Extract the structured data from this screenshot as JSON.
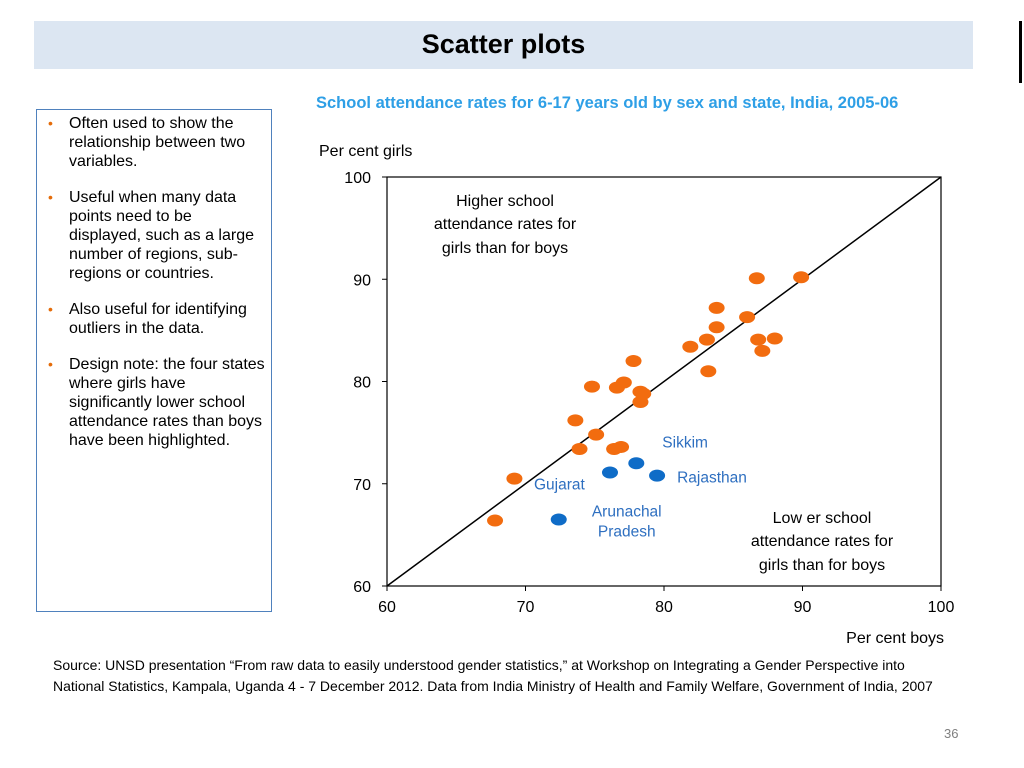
{
  "slide": {
    "title": "Scatter plots",
    "page_number": "36",
    "source": " Source: UNSD presentation “From raw data to easily understood gender statistics,” at Workshop on Integrating a Gender Perspective into National Statistics, Kampala, Uganda 4 - 7 December 2012. Data from India Ministry of Health and Family Welfare, Government of India, 2007"
  },
  "bullets": [
    "Often used to show the relationship between two variables.",
    "Useful  when many data points need to be displayed, such as  a large number of regions, sub-regions or countries.",
    "Also useful for identifying outliers in the data.",
    "Design note: the four states where girls have significantly lower school attendance rates than boys have been highlighted."
  ],
  "colors": {
    "bullet": "#e46c0a",
    "orange_points": "#f26c0f",
    "blue_points": "#0f6cc7",
    "chart_title": "#2e9fe6",
    "blue_labels": "#2e6fc0"
  },
  "chart_data": {
    "type": "scatter",
    "title": "School attendance rates for 6-17 years old by sex and state, India, 2005-06",
    "xlabel": "Per cent boys",
    "ylabel": "Per cent girls",
    "xlim": [
      60,
      100
    ],
    "ylim": [
      60,
      100
    ],
    "xticks": [
      "60",
      "70",
      "80",
      "90",
      "100"
    ],
    "yticks": [
      "60",
      "70",
      "80",
      "90",
      "100"
    ],
    "grid": false,
    "reference_line": "y = x",
    "annotations": {
      "upper_left": [
        "Higher school",
        "attendance rates for",
        "girls than for boys"
      ],
      "lower_right": [
        "Low er school",
        "attendance rates for",
        "girls than for boys"
      ]
    },
    "series": [
      {
        "color": "orange",
        "points": [
          [
            67.8,
            66.4
          ],
          [
            69.2,
            70.5
          ],
          [
            73.6,
            76.2
          ],
          [
            73.9,
            73.4
          ],
          [
            74.8,
            79.5
          ],
          [
            75.1,
            74.8
          ],
          [
            76.4,
            73.4
          ],
          [
            76.6,
            79.4
          ],
          [
            76.9,
            73.6
          ],
          [
            77.1,
            79.9
          ],
          [
            77.8,
            82.0
          ],
          [
            78.3,
            79.0
          ],
          [
            78.3,
            78.0
          ],
          [
            78.5,
            78.8
          ],
          [
            81.9,
            83.4
          ],
          [
            83.1,
            84.1
          ],
          [
            83.2,
            81.0
          ],
          [
            83.8,
            87.2
          ],
          [
            83.8,
            85.3
          ],
          [
            86.0,
            86.3
          ],
          [
            86.7,
            90.1
          ],
          [
            86.8,
            84.1
          ],
          [
            87.1,
            83.0
          ],
          [
            88.0,
            84.2
          ],
          [
            89.9,
            90.2
          ]
        ]
      },
      {
        "color": "blue",
        "points": [
          {
            "label": "Gujarat",
            "x": 76.1,
            "y": 71.1
          },
          {
            "label": "Sikkim",
            "x": 78.0,
            "y": 72.0
          },
          {
            "label": "Rajasthan",
            "x": 79.5,
            "y": 70.8
          },
          {
            "label": "Arunachal Pradesh",
            "x": 72.4,
            "y": 66.5
          }
        ]
      }
    ]
  }
}
